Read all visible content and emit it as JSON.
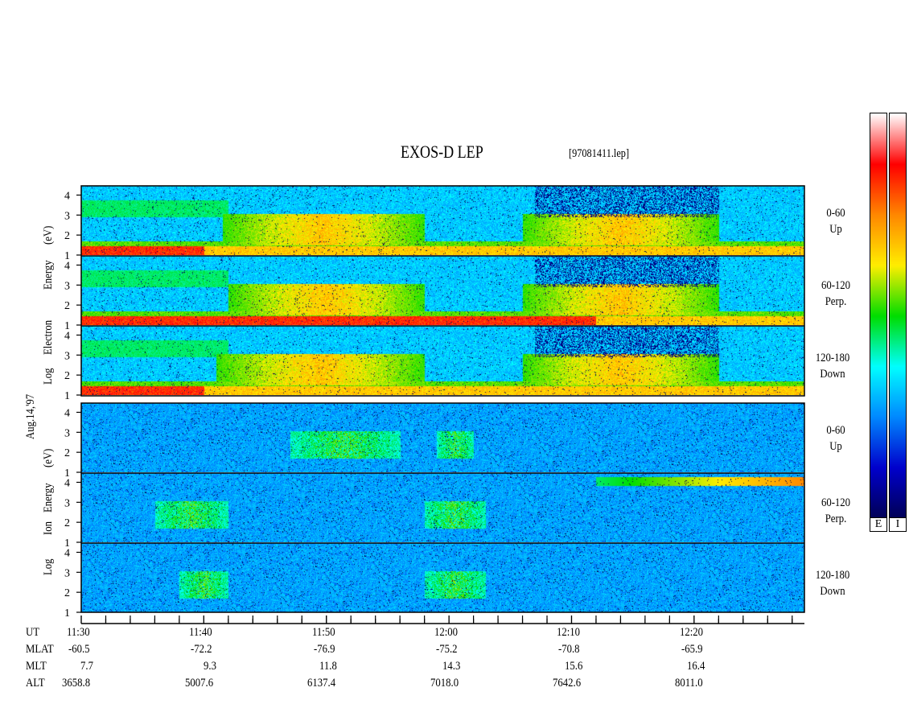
{
  "header": {
    "title": "EXOS-D LEP",
    "file_label": "[97081411.lep]"
  },
  "left_labels": {
    "date": "Aug.14,'97",
    "electron_lines": [
      "Log",
      "Electron",
      "Energy",
      "(eV)"
    ],
    "ion_lines": [
      "Log",
      "Ion",
      "Energy",
      "(eV)"
    ]
  },
  "chart_data": {
    "type": "heatmap",
    "description_free": true,
    "y_axis": {
      "scale": "log",
      "ticks": [
        "1",
        "2",
        "3",
        "4"
      ],
      "range": [
        1,
        4.3
      ]
    },
    "x_axis": {
      "time_labels": [
        "11:30",
        "11:40",
        "11:50",
        "12:00",
        "12:10",
        "12:20"
      ],
      "minor_tick_minutes": 2,
      "range_minutes": [
        0,
        59
      ]
    },
    "colors": {
      "scale": [
        "#ffffff",
        "#ff0000",
        "#ff8800",
        "#ffee00",
        "#00dd00",
        "#00ffff",
        "#0088ff",
        "#0000cc",
        "#000055"
      ],
      "colorbar_labels": [
        "E",
        "I"
      ]
    },
    "panels": [
      {
        "species": "Electron",
        "angle": "0-60",
        "direction": "Up",
        "bright_intervals": [
          [
            11.5,
            28
          ],
          [
            36,
            52
          ]
        ],
        "low_energy_band": [
          0,
          10
        ]
      },
      {
        "species": "Electron",
        "angle": "60-120",
        "direction": "Perp.",
        "bright_intervals": [
          [
            12,
            28
          ],
          [
            36,
            52
          ]
        ],
        "low_energy_band": [
          0,
          42
        ]
      },
      {
        "species": "Electron",
        "angle": "120-180",
        "direction": "Down",
        "bright_intervals": [
          [
            11,
            28
          ],
          [
            36,
            52
          ]
        ],
        "low_energy_band": [
          0,
          10
        ]
      },
      {
        "species": "Ion",
        "angle": "0-60",
        "direction": "Up",
        "bright_intervals": [
          [
            17,
            26
          ],
          [
            29,
            32
          ]
        ],
        "low_energy_band": []
      },
      {
        "species": "Ion",
        "angle": "60-120",
        "direction": "Perp.",
        "bright_intervals": [
          [
            6,
            12
          ],
          [
            28,
            33
          ]
        ],
        "low_energy_band": []
      },
      {
        "species": "Ion",
        "angle": "120-180",
        "direction": "Down",
        "bright_intervals": [
          [
            8,
            12
          ],
          [
            28,
            33
          ]
        ],
        "low_energy_band": []
      }
    ],
    "ephemeris": {
      "row_labels": [
        "UT",
        "MLAT",
        "MLT",
        "ALT"
      ],
      "MLAT": [
        "-60.5",
        "-72.2",
        "-76.9",
        "-75.2",
        "-70.8",
        "-65.9"
      ],
      "MLT": [
        "7.7",
        "9.3",
        "11.8",
        "14.3",
        "15.6",
        "16.4"
      ],
      "ALT": [
        "3658.8",
        "5007.6",
        "6137.4",
        "7018.0",
        "7642.6",
        "8011.0"
      ]
    }
  }
}
